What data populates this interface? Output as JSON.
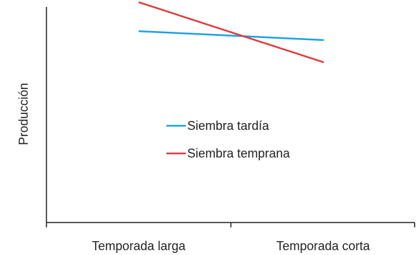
{
  "chart_data": {
    "type": "line",
    "title": "",
    "xlabel": "",
    "ylabel": "Producción",
    "categories": [
      "Temporada larga",
      "Temporada corta"
    ],
    "ylim": [
      0,
      100
    ],
    "grid": false,
    "legend_position": "center",
    "series": [
      {
        "name": "Siembra tardía",
        "values": [
          86,
          82
        ],
        "color": "#1ba1e2"
      },
      {
        "name": "Siembra temprana",
        "values": [
          99,
          72
        ],
        "color": "#e03c3c"
      }
    ]
  }
}
